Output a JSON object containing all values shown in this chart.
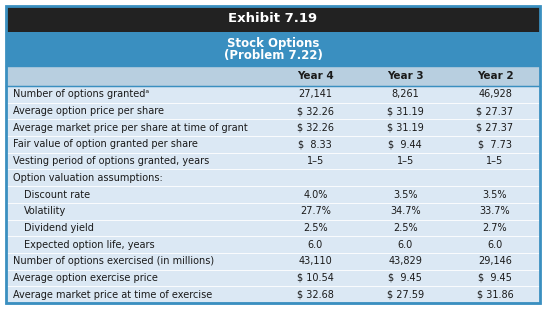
{
  "title": "Exhibit 7.19",
  "subtitle1": "Stock Options",
  "subtitle2": "(Problem 7.22)",
  "col_headers": [
    "Year 4",
    "Year 3",
    "Year 2"
  ],
  "rows": [
    {
      "label": "Number of options grantedᵃ",
      "indent": false,
      "values": [
        "27,141",
        "8,261",
        "46,928"
      ]
    },
    {
      "label": "Average option price per share",
      "indent": false,
      "values": [
        "$ 32.26",
        "$ 31.19",
        "$ 27.37"
      ]
    },
    {
      "label": "Average market price per share at time of grant",
      "indent": false,
      "values": [
        "$ 32.26",
        "$ 31.19",
        "$ 27.37"
      ]
    },
    {
      "label": "Fair value of option granted per share",
      "indent": false,
      "values": [
        "$  8.33",
        "$  9.44",
        "$  7.73"
      ]
    },
    {
      "label": "Vesting period of options granted, years",
      "indent": false,
      "values": [
        "1–5",
        "1–5",
        "1–5"
      ]
    },
    {
      "label": "Option valuation assumptions:",
      "indent": false,
      "values": [
        "",
        "",
        ""
      ]
    },
    {
      "label": "Discount rate",
      "indent": true,
      "values": [
        "4.0%",
        "3.5%",
        "3.5%"
      ]
    },
    {
      "label": "Volatility",
      "indent": true,
      "values": [
        "27.7%",
        "34.7%",
        "33.7%"
      ]
    },
    {
      "label": "Dividend yield",
      "indent": true,
      "values": [
        "2.5%",
        "2.5%",
        "2.7%"
      ]
    },
    {
      "label": "Expected option life, years",
      "indent": true,
      "values": [
        "6.0",
        "6.0",
        "6.0"
      ]
    },
    {
      "label": "Number of options exercised (in millions)",
      "indent": false,
      "values": [
        "43,110",
        "43,829",
        "29,146"
      ]
    },
    {
      "label": "Average option exercise price",
      "indent": false,
      "values": [
        "$ 10.54",
        "$  9.45",
        "$  9.45"
      ]
    },
    {
      "label": "Average market price at time of exercise",
      "indent": false,
      "values": [
        "$ 32.68",
        "$ 27.59",
        "$ 31.86"
      ]
    }
  ],
  "title_bg": "#222222",
  "title_fg": "#ffffff",
  "subtitle_bg": "#3a8fc0",
  "subtitle_fg": "#ffffff",
  "header_bg": "#b8cfe0",
  "header_fg": "#1a1a1a",
  "data_bg": "#dbe8f4",
  "data_fg": "#1a1a1a",
  "border_color": "#3a8fc0",
  "sep_color": "#ffffff"
}
